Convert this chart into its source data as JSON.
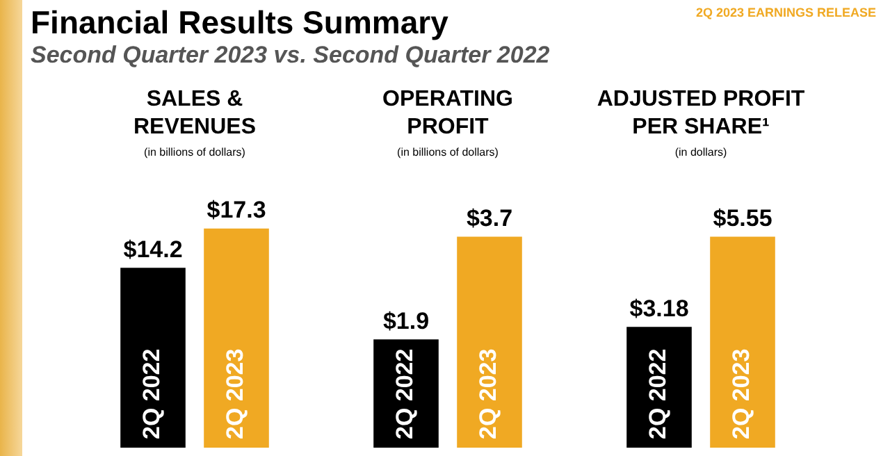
{
  "chart_data": [
    {
      "type": "other",
      "title": "Financial Results Summary",
      "subtitle": "Second Quarter 2023 vs. Second Quarter 2022",
      "annotations": [
        "2Q 2023 EARNINGS RELEASE"
      ]
    },
    {
      "type": "bar",
      "title": "SALES & REVENUES",
      "subtitle": "(in billions of dollars)",
      "categories": [
        "2Q 2022",
        "2Q 2023"
      ],
      "values": [
        14.2,
        17.3
      ],
      "colors": [
        "#000000",
        "#f0a923"
      ],
      "value_labels": [
        "$14.2",
        "$17.3"
      ]
    },
    {
      "type": "bar",
      "title": "OPERATING PROFIT",
      "subtitle": "(in billions of dollars)",
      "categories": [
        "2Q 2022",
        "2Q 2023"
      ],
      "values": [
        1.9,
        3.7
      ],
      "colors": [
        "#000000",
        "#f0a923"
      ],
      "value_labels": [
        "$1.9",
        "$3.7"
      ]
    },
    {
      "type": "bar",
      "title": "ADJUSTED PROFIT PER SHARE¹",
      "subtitle": "(in dollars)",
      "categories": [
        "2Q 2022",
        "2Q 2023"
      ],
      "values": [
        3.18,
        5.55
      ],
      "colors": [
        "#000000",
        "#f0a923"
      ],
      "value_labels": [
        "$3.18",
        "$5.55"
      ]
    }
  ]
}
